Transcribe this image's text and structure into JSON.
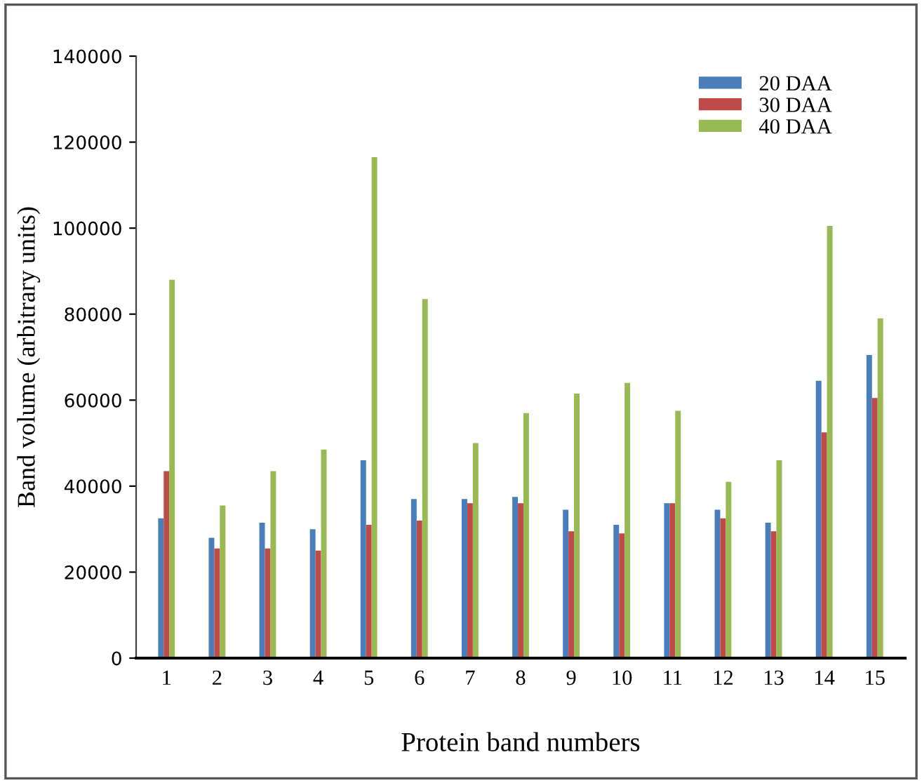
{
  "chart_data": {
    "type": "bar",
    "xlabel": "Protein band numbers",
    "ylabel": "Band volume (arbitrary units)",
    "categories": [
      "1",
      "2",
      "3",
      "4",
      "5",
      "6",
      "7",
      "8",
      "9",
      "10",
      "11",
      "12",
      "13",
      "14",
      "15"
    ],
    "series": [
      {
        "name": "20 DAA",
        "color": "#4a7ebb",
        "values": [
          32500,
          28000,
          31500,
          30000,
          46000,
          37000,
          37000,
          37500,
          34500,
          31000,
          36000,
          34500,
          31500,
          64500,
          70500
        ]
      },
      {
        "name": "30 DAA",
        "color": "#be4b48",
        "values": [
          43500,
          25500,
          25500,
          25000,
          31000,
          32000,
          36000,
          36000,
          29500,
          29000,
          36000,
          32500,
          29500,
          52500,
          60500
        ]
      },
      {
        "name": "40 DAA",
        "color": "#98b954",
        "values": [
          88000,
          35500,
          43500,
          48500,
          116500,
          83500,
          50000,
          57000,
          61500,
          64000,
          57500,
          41000,
          46000,
          100500,
          79000
        ]
      }
    ],
    "ylim": [
      0,
      140000
    ],
    "yticks": [
      0,
      20000,
      40000,
      60000,
      80000,
      100000,
      120000,
      140000
    ],
    "grid": false,
    "legend": "top right"
  }
}
